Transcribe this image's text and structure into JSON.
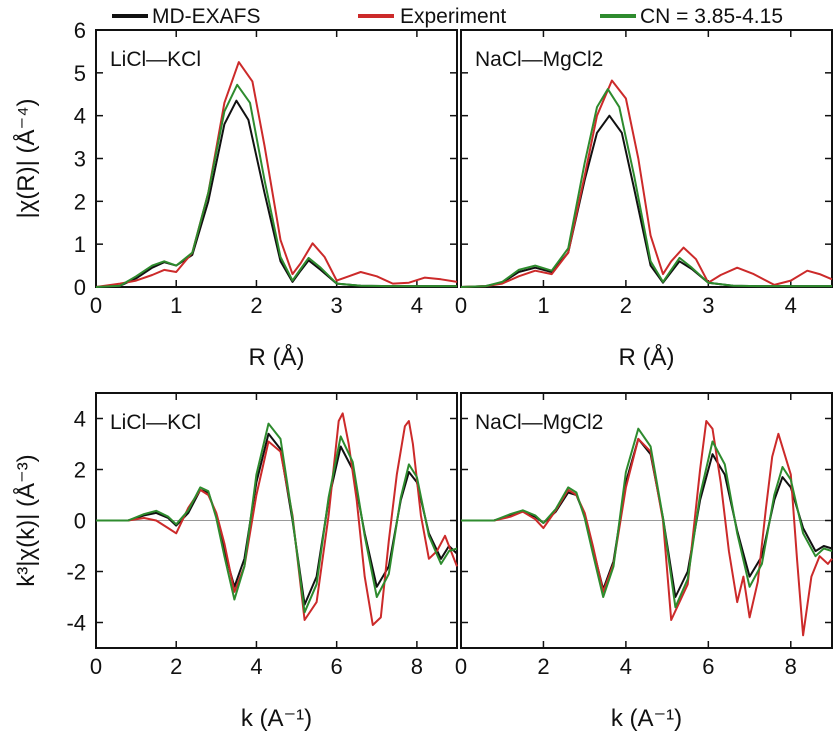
{
  "legend": [
    {
      "name": "MD-EXAFS",
      "color": "#111111"
    },
    {
      "name": "Experiment",
      "color": "#cc2a2a"
    },
    {
      "name": "CN = 3.85-4.15",
      "color": "#2e8b2e"
    }
  ],
  "colors": {
    "md": "#111111",
    "exp": "#cc2a2a",
    "cn": "#2e8b2e"
  },
  "chart_data": [
    {
      "type": "line",
      "panel_label": "LiCl—KCl",
      "xlabel": "R (Å)",
      "ylabel": "|χ(R)| (Å⁻⁴)",
      "xlim": [
        0,
        4.5
      ],
      "ylim": [
        0,
        6
      ],
      "xticks": [
        "0",
        "1",
        "2",
        "3",
        "4"
      ],
      "yticks": [
        "0",
        "1",
        "2",
        "3",
        "4",
        "5",
        "6"
      ],
      "series": [
        {
          "name": "MD-EXAFS",
          "x": [
            0,
            0.3,
            0.5,
            0.7,
            0.85,
            1.0,
            1.2,
            1.4,
            1.6,
            1.75,
            1.9,
            2.1,
            2.3,
            2.45,
            2.55,
            2.65,
            2.8,
            3.0,
            3.3,
            3.6,
            3.9,
            4.2,
            4.5
          ],
          "y": [
            0,
            0.03,
            0.2,
            0.45,
            0.58,
            0.5,
            0.75,
            2.0,
            3.8,
            4.35,
            3.9,
            2.2,
            0.6,
            0.12,
            0.38,
            0.62,
            0.4,
            0.08,
            0.03,
            0.02,
            0.02,
            0.02,
            0.02
          ]
        },
        {
          "name": "Experiment",
          "x": [
            0,
            0.3,
            0.5,
            0.7,
            0.85,
            1.0,
            1.2,
            1.4,
            1.6,
            1.78,
            1.95,
            2.1,
            2.3,
            2.45,
            2.55,
            2.7,
            2.85,
            3.0,
            3.15,
            3.3,
            3.5,
            3.7,
            3.9,
            4.1,
            4.3,
            4.5
          ],
          "y": [
            0,
            0.08,
            0.15,
            0.28,
            0.4,
            0.35,
            0.8,
            2.2,
            4.3,
            5.25,
            4.8,
            3.3,
            1.1,
            0.3,
            0.55,
            1.02,
            0.7,
            0.15,
            0.25,
            0.35,
            0.25,
            0.08,
            0.1,
            0.22,
            0.18,
            0.12
          ]
        },
        {
          "name": "CN = 3.85-4.15",
          "x": [
            0,
            0.3,
            0.5,
            0.7,
            0.85,
            1.0,
            1.2,
            1.4,
            1.6,
            1.76,
            1.92,
            2.1,
            2.3,
            2.45,
            2.55,
            2.65,
            2.8,
            3.0,
            3.3,
            3.6,
            3.9,
            4.2,
            4.5
          ],
          "y": [
            0,
            0.03,
            0.25,
            0.5,
            0.6,
            0.5,
            0.8,
            2.2,
            4.1,
            4.72,
            4.3,
            2.5,
            0.7,
            0.15,
            0.42,
            0.68,
            0.45,
            0.08,
            0.03,
            0.02,
            0.02,
            0.02,
            0.02
          ]
        }
      ]
    },
    {
      "type": "line",
      "panel_label": "NaCl—MgCl2",
      "xlabel": "R (Å)",
      "xlim": [
        0,
        4.5
      ],
      "ylim": [
        0,
        6
      ],
      "xticks": [
        "0",
        "1",
        "2",
        "3",
        "4"
      ],
      "series": [
        {
          "name": "MD-EXAFS",
          "x": [
            0,
            0.3,
            0.5,
            0.7,
            0.9,
            1.1,
            1.3,
            1.5,
            1.65,
            1.8,
            1.95,
            2.1,
            2.3,
            2.45,
            2.55,
            2.65,
            2.8,
            3.0,
            3.3,
            3.6,
            4.0,
            4.5
          ],
          "y": [
            0,
            0.02,
            0.1,
            0.35,
            0.45,
            0.35,
            0.8,
            2.5,
            3.6,
            4.0,
            3.6,
            2.3,
            0.5,
            0.1,
            0.35,
            0.6,
            0.42,
            0.1,
            0.03,
            0.02,
            0.02,
            0.02
          ]
        },
        {
          "name": "Experiment",
          "x": [
            0,
            0.3,
            0.5,
            0.7,
            0.9,
            1.1,
            1.3,
            1.5,
            1.65,
            1.83,
            2.0,
            2.15,
            2.3,
            2.45,
            2.55,
            2.7,
            2.85,
            3.0,
            3.15,
            3.35,
            3.55,
            3.8,
            4.0,
            4.2,
            4.35,
            4.5
          ],
          "y": [
            0,
            0.02,
            0.08,
            0.25,
            0.38,
            0.3,
            0.8,
            2.6,
            4.0,
            4.82,
            4.4,
            3.0,
            1.2,
            0.3,
            0.6,
            0.92,
            0.65,
            0.1,
            0.28,
            0.45,
            0.3,
            0.05,
            0.15,
            0.38,
            0.3,
            0.18
          ]
        },
        {
          "name": "CN = 3.85-4.15",
          "x": [
            0,
            0.3,
            0.5,
            0.7,
            0.9,
            1.1,
            1.3,
            1.5,
            1.65,
            1.78,
            1.92,
            2.1,
            2.3,
            2.45,
            2.55,
            2.65,
            2.8,
            3.0,
            3.3,
            3.6,
            4.0,
            4.5
          ],
          "y": [
            0,
            0.02,
            0.12,
            0.4,
            0.5,
            0.38,
            0.9,
            2.9,
            4.2,
            4.62,
            4.2,
            2.6,
            0.6,
            0.12,
            0.4,
            0.68,
            0.45,
            0.1,
            0.03,
            0.02,
            0.02,
            0.02
          ]
        }
      ]
    },
    {
      "type": "line",
      "panel_label": "LiCl—KCl",
      "xlabel": "k (A⁻¹)",
      "ylabel": "k³|χ(k)| (Å⁻³)",
      "xlim": [
        0,
        9
      ],
      "ylim": [
        -5,
        5
      ],
      "xticks": [
        "0",
        "2",
        "4",
        "6",
        "8"
      ],
      "yticks": [
        "-4",
        "-2",
        "0",
        "2",
        "4"
      ],
      "series": [
        {
          "name": "MD-EXAFS",
          "x": [
            0,
            0.8,
            1.2,
            1.5,
            1.8,
            2.0,
            2.3,
            2.6,
            2.8,
            3.0,
            3.2,
            3.45,
            3.7,
            4.0,
            4.3,
            4.6,
            4.9,
            5.2,
            5.5,
            5.8,
            6.1,
            6.4,
            6.7,
            7.0,
            7.3,
            7.6,
            7.8,
            8.0,
            8.3,
            8.6,
            8.8,
            9.0
          ],
          "y": [
            0,
            0,
            0.2,
            0.3,
            0.1,
            -0.2,
            0.3,
            1.2,
            1.1,
            0.2,
            -1.2,
            -2.6,
            -1.5,
            1.5,
            3.4,
            2.8,
            0.0,
            -3.3,
            -2.2,
            0.8,
            2.9,
            2.0,
            -0.5,
            -2.6,
            -1.8,
            0.8,
            1.9,
            1.5,
            -0.5,
            -1.5,
            -1.0,
            -1.3
          ]
        },
        {
          "name": "Experiment",
          "x": [
            0,
            0.8,
            1.2,
            1.5,
            1.8,
            2.0,
            2.3,
            2.6,
            2.8,
            3.0,
            3.2,
            3.45,
            3.7,
            4.0,
            4.3,
            4.6,
            4.9,
            5.2,
            5.5,
            5.8,
            6.05,
            6.15,
            6.3,
            6.5,
            6.7,
            6.9,
            7.1,
            7.3,
            7.5,
            7.7,
            7.8,
            7.9,
            8.1,
            8.3,
            8.5,
            8.7,
            8.9,
            9.0
          ],
          "y": [
            0,
            0,
            0.1,
            0.0,
            -0.3,
            -0.5,
            0.5,
            1.2,
            1.0,
            0.3,
            -0.9,
            -2.8,
            -1.8,
            1.0,
            3.1,
            2.7,
            0.2,
            -3.9,
            -3.2,
            0.2,
            3.9,
            4.2,
            3.0,
            0.8,
            -2.2,
            -4.1,
            -3.8,
            -0.8,
            1.8,
            3.7,
            3.9,
            3.0,
            0.2,
            -1.5,
            -1.2,
            -0.6,
            -1.4,
            -1.8
          ]
        },
        {
          "name": "CN = 3.85-4.15",
          "x": [
            0,
            0.8,
            1.2,
            1.5,
            1.8,
            2.0,
            2.3,
            2.6,
            2.8,
            3.0,
            3.2,
            3.45,
            3.7,
            4.0,
            4.3,
            4.6,
            4.9,
            5.2,
            5.5,
            5.8,
            6.1,
            6.4,
            6.7,
            7.0,
            7.3,
            7.6,
            7.8,
            8.0,
            8.3,
            8.6,
            8.8,
            9.0
          ],
          "y": [
            0,
            0,
            0.25,
            0.38,
            0.15,
            -0.15,
            0.4,
            1.3,
            1.15,
            0.1,
            -1.4,
            -3.1,
            -1.8,
            1.8,
            3.8,
            3.2,
            0.1,
            -3.6,
            -2.5,
            0.9,
            3.3,
            2.3,
            -0.6,
            -3.0,
            -2.1,
            0.9,
            2.2,
            1.7,
            -0.6,
            -1.7,
            -1.2,
            -1.1
          ]
        }
      ]
    },
    {
      "type": "line",
      "panel_label": "NaCl—MgCl2",
      "xlabel": "k (A⁻¹)",
      "xlim": [
        0,
        9
      ],
      "ylim": [
        -5,
        5
      ],
      "xticks": [
        "0",
        "2",
        "4",
        "6",
        "8"
      ],
      "series": [
        {
          "name": "MD-EXAFS",
          "x": [
            0,
            0.8,
            1.2,
            1.5,
            1.8,
            2.0,
            2.3,
            2.6,
            2.8,
            3.0,
            3.2,
            3.45,
            3.7,
            4.0,
            4.3,
            4.6,
            4.9,
            5.2,
            5.5,
            5.8,
            6.1,
            6.4,
            6.7,
            7.0,
            7.3,
            7.6,
            7.8,
            8.0,
            8.3,
            8.6,
            8.8,
            9.0
          ],
          "y": [
            0,
            0,
            0.2,
            0.35,
            0.15,
            -0.1,
            0.35,
            1.1,
            1.0,
            0.2,
            -1.1,
            -2.7,
            -1.6,
            1.5,
            3.2,
            2.6,
            0.1,
            -3.0,
            -2.0,
            0.8,
            2.6,
            1.8,
            -0.4,
            -2.2,
            -1.4,
            0.8,
            1.7,
            1.3,
            -0.3,
            -1.2,
            -1.0,
            -1.1
          ]
        },
        {
          "name": "Experiment",
          "x": [
            0,
            0.8,
            1.2,
            1.5,
            1.8,
            2.0,
            2.3,
            2.6,
            2.8,
            3.0,
            3.2,
            3.45,
            3.7,
            4.0,
            4.3,
            4.6,
            4.9,
            5.1,
            5.3,
            5.5,
            5.8,
            5.95,
            6.1,
            6.3,
            6.5,
            6.7,
            6.85,
            7.0,
            7.2,
            7.4,
            7.55,
            7.7,
            7.85,
            8.0,
            8.15,
            8.3,
            8.5,
            8.7,
            8.9,
            9.0
          ],
          "y": [
            0,
            0,
            0.15,
            0.35,
            0.05,
            -0.3,
            0.4,
            1.2,
            1.0,
            0.3,
            -1.0,
            -2.8,
            -1.7,
            1.3,
            3.2,
            2.7,
            0.0,
            -3.9,
            -3.2,
            -2.5,
            2.0,
            3.9,
            3.6,
            1.5,
            -1.2,
            -3.2,
            -2.2,
            -3.8,
            -2.4,
            0.5,
            2.5,
            3.4,
            2.6,
            1.8,
            -1.5,
            -4.5,
            -2.2,
            -1.4,
            -1.7,
            -1.5
          ]
        },
        {
          "name": "CN = 3.85-4.15",
          "x": [
            0,
            0.8,
            1.2,
            1.5,
            1.8,
            2.0,
            2.3,
            2.6,
            2.8,
            3.0,
            3.2,
            3.45,
            3.7,
            4.0,
            4.3,
            4.6,
            4.9,
            5.2,
            5.5,
            5.8,
            6.1,
            6.4,
            6.7,
            7.0,
            7.3,
            7.6,
            7.8,
            8.0,
            8.3,
            8.6,
            8.8,
            9.0
          ],
          "y": [
            0,
            0,
            0.25,
            0.4,
            0.2,
            -0.1,
            0.45,
            1.3,
            1.1,
            0.1,
            -1.3,
            -3.0,
            -1.8,
            1.9,
            3.6,
            2.9,
            0.1,
            -3.4,
            -2.3,
            1.0,
            3.1,
            2.2,
            -0.5,
            -2.6,
            -1.7,
            1.0,
            2.1,
            1.6,
            -0.5,
            -1.4,
            -1.1,
            -1.2
          ]
        }
      ]
    }
  ]
}
